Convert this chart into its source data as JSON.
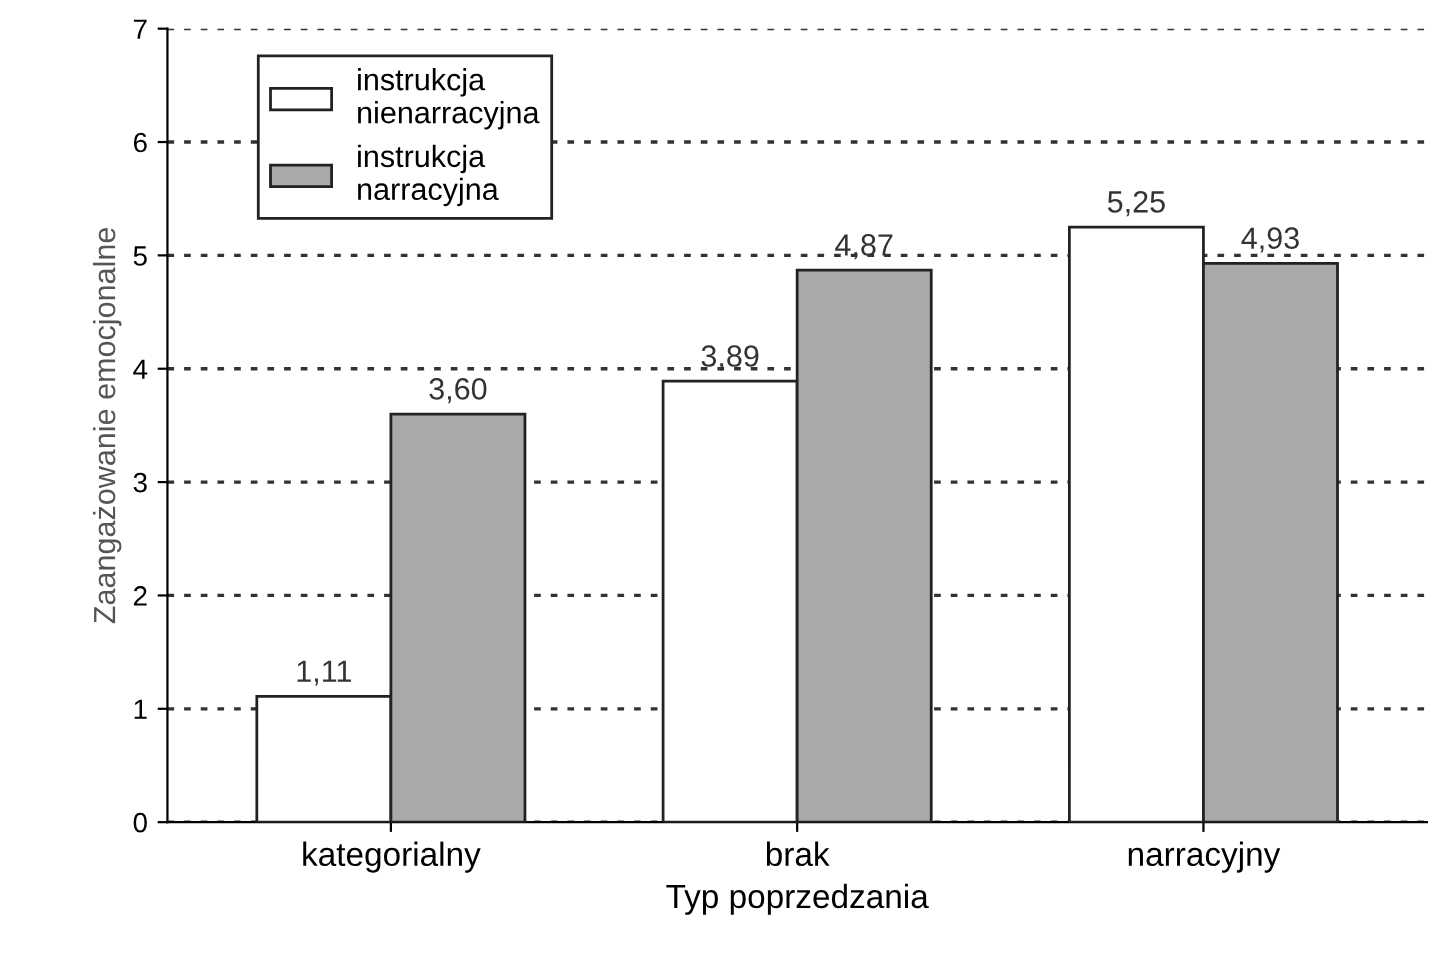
{
  "chart_data": {
    "type": "bar",
    "ylabel": "Zaangażowanie emocjonalne",
    "xlabel": "Typ poprzedzania",
    "categories": [
      "kategorialny",
      "brak",
      "narracyjny"
    ],
    "series": [
      {
        "name": "instrukcja\nnienarracyjna",
        "color": "#ffffff",
        "values": [
          1.11,
          3.89,
          5.25
        ],
        "value_labels": [
          "1,11",
          "3,89",
          "5,25"
        ]
      },
      {
        "name": "instrukcja\nnarracyjna",
        "color": "#a9a9a9",
        "values": [
          3.6,
          4.87,
          4.93
        ],
        "value_labels": [
          "3,60",
          "4,87",
          "4,93"
        ]
      }
    ],
    "ylim": [
      0,
      7
    ],
    "yticks": [
      0,
      1,
      2,
      3,
      4,
      5,
      6,
      7
    ],
    "grid": "y",
    "legend": "top left"
  }
}
